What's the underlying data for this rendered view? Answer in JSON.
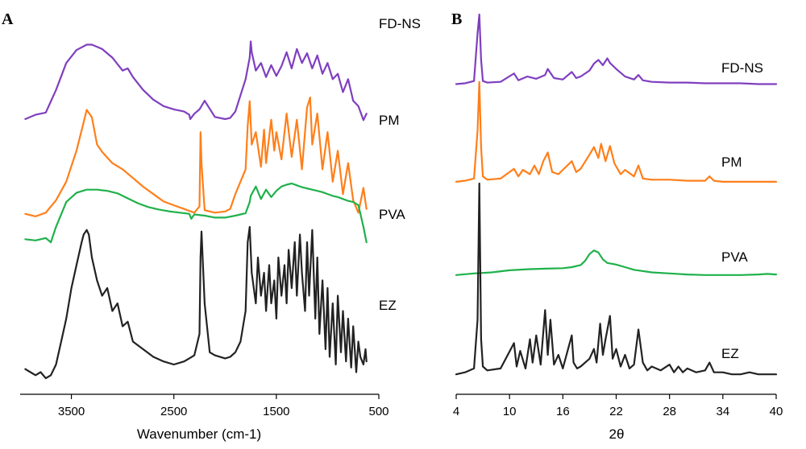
{
  "chart_data": [
    {
      "panel_label": "A",
      "type": "line",
      "xlabel": "Wavenumber (cm-1)",
      "ylabel": "",
      "xlim": [
        4000,
        500
      ],
      "x_axis_reversed": true,
      "xticks": [
        3500,
        2500,
        1500,
        500
      ],
      "x_tick_labels": [
        "3500",
        "2500",
        "1500",
        "500"
      ],
      "series": [
        {
          "name": "FD-NS",
          "color": "#7f3fbf",
          "x": [
            3950,
            3850,
            3750,
            3650,
            3550,
            3450,
            3350,
            3300,
            3200,
            3100,
            3000,
            2950,
            2900,
            2800,
            2700,
            2600,
            2500,
            2400,
            2350,
            2340,
            2300,
            2250,
            2200,
            2100,
            2000,
            1950,
            1900,
            1800,
            1760,
            1750,
            1740,
            1700,
            1650,
            1600,
            1550,
            1500,
            1450,
            1400,
            1350,
            1300,
            1250,
            1200,
            1150,
            1100,
            1050,
            1000,
            950,
            900,
            850,
            800,
            750,
            700,
            650,
            620
          ],
          "y": [
            0.97,
            0.93,
            0.91,
            0.7,
            0.45,
            0.33,
            0.28,
            0.28,
            0.32,
            0.4,
            0.52,
            0.5,
            0.58,
            0.7,
            0.79,
            0.85,
            0.88,
            0.9,
            0.93,
            0.97,
            0.92,
            0.88,
            0.8,
            0.95,
            0.97,
            0.96,
            0.9,
            0.6,
            0.4,
            0.25,
            0.35,
            0.52,
            0.45,
            0.58,
            0.47,
            0.57,
            0.48,
            0.35,
            0.5,
            0.32,
            0.45,
            0.36,
            0.5,
            0.38,
            0.55,
            0.45,
            0.6,
            0.55,
            0.72,
            0.6,
            0.8,
            0.85,
            0.98,
            0.92
          ]
        },
        {
          "name": "PM",
          "color": "#ff7f1a",
          "x": [
            3950,
            3850,
            3750,
            3650,
            3550,
            3450,
            3380,
            3350,
            3300,
            3250,
            3200,
            3100,
            3000,
            2900,
            2800,
            2700,
            2600,
            2500,
            2400,
            2300,
            2250,
            2240,
            2230,
            2200,
            2100,
            2000,
            1950,
            1900,
            1800,
            1780,
            1760,
            1740,
            1700,
            1650,
            1620,
            1600,
            1550,
            1520,
            1500,
            1450,
            1400,
            1350,
            1300,
            1250,
            1200,
            1170,
            1150,
            1100,
            1050,
            1000,
            950,
            900,
            850,
            800,
            750,
            700,
            650,
            620
          ],
          "y": [
            0.96,
            0.98,
            0.95,
            0.85,
            0.7,
            0.45,
            0.22,
            0.12,
            0.18,
            0.4,
            0.46,
            0.55,
            0.6,
            0.67,
            0.74,
            0.8,
            0.86,
            0.89,
            0.92,
            0.95,
            0.9,
            0.3,
            0.55,
            0.93,
            0.95,
            0.94,
            0.92,
            0.8,
            0.6,
            0.25,
            0.05,
            0.4,
            0.3,
            0.58,
            0.28,
            0.55,
            0.2,
            0.45,
            0.3,
            0.52,
            0.15,
            0.5,
            0.2,
            0.6,
            0.1,
            0.02,
            0.4,
            0.15,
            0.6,
            0.3,
            0.7,
            0.45,
            0.8,
            0.55,
            0.85,
            0.95,
            0.75,
            0.92
          ]
        },
        {
          "name": "PVA",
          "color": "#1fb14b",
          "x": [
            3950,
            3850,
            3750,
            3700,
            3650,
            3550,
            3450,
            3350,
            3250,
            3150,
            3050,
            2950,
            2850,
            2750,
            2650,
            2550,
            2450,
            2350,
            2330,
            2300,
            2200,
            2100,
            2000,
            1900,
            1800,
            1760,
            1750,
            1700,
            1650,
            1600,
            1550,
            1500,
            1450,
            1400,
            1350,
            1300,
            1250,
            1200,
            1150,
            1100,
            1050,
            1000,
            950,
            900,
            850,
            800,
            750,
            700,
            650,
            620
          ],
          "y": [
            0.9,
            0.92,
            0.88,
            0.95,
            0.7,
            0.3,
            0.15,
            0.1,
            0.1,
            0.12,
            0.16,
            0.24,
            0.32,
            0.38,
            0.42,
            0.45,
            0.47,
            0.49,
            0.57,
            0.5,
            0.52,
            0.55,
            0.55,
            0.52,
            0.48,
            0.3,
            0.2,
            0.05,
            0.25,
            0.1,
            0.22,
            0.12,
            0.05,
            0.02,
            0.0,
            0.03,
            0.06,
            0.08,
            0.1,
            0.12,
            0.14,
            0.17,
            0.2,
            0.22,
            0.25,
            0.28,
            0.3,
            0.35,
            0.7,
            0.95
          ]
        },
        {
          "name": "EZ",
          "color": "#222222",
          "x": [
            3950,
            3900,
            3850,
            3800,
            3750,
            3700,
            3650,
            3600,
            3550,
            3500,
            3450,
            3400,
            3380,
            3350,
            3330,
            3300,
            3250,
            3200,
            3150,
            3100,
            3050,
            3000,
            2950,
            2900,
            2800,
            2700,
            2600,
            2500,
            2400,
            2350,
            2300,
            2250,
            2240,
            2230,
            2200,
            2150,
            2100,
            2000,
            1950,
            1900,
            1850,
            1800,
            1780,
            1760,
            1740,
            1700,
            1680,
            1650,
            1620,
            1600,
            1570,
            1550,
            1520,
            1500,
            1480,
            1450,
            1420,
            1400,
            1380,
            1350,
            1320,
            1300,
            1270,
            1250,
            1220,
            1200,
            1180,
            1150,
            1120,
            1100,
            1080,
            1050,
            1020,
            1000,
            980,
            950,
            920,
            900,
            870,
            850,
            820,
            800,
            770,
            750,
            720,
            700,
            680,
            650,
            630,
            620
          ],
          "y": [
            0.93,
            0.95,
            0.97,
            0.95,
            0.99,
            0.97,
            0.9,
            0.75,
            0.6,
            0.4,
            0.25,
            0.1,
            0.05,
            0.02,
            0.05,
            0.2,
            0.35,
            0.45,
            0.4,
            0.55,
            0.5,
            0.65,
            0.62,
            0.75,
            0.8,
            0.85,
            0.88,
            0.9,
            0.88,
            0.86,
            0.84,
            0.7,
            0.2,
            0.03,
            0.5,
            0.82,
            0.84,
            0.86,
            0.85,
            0.82,
            0.75,
            0.55,
            0.1,
            0.0,
            0.3,
            0.5,
            0.2,
            0.45,
            0.3,
            0.55,
            0.25,
            0.5,
            0.35,
            0.6,
            0.2,
            0.45,
            0.25,
            0.5,
            0.15,
            0.4,
            0.1,
            0.45,
            0.05,
            0.3,
            0.55,
            0.1,
            0.45,
            0.02,
            0.6,
            0.2,
            0.7,
            0.35,
            0.8,
            0.4,
            0.85,
            0.5,
            0.9,
            0.45,
            0.82,
            0.55,
            0.88,
            0.6,
            0.92,
            0.65,
            0.95,
            0.75,
            0.85,
            0.9,
            0.8,
            0.88
          ]
        }
      ]
    },
    {
      "panel_label": "B",
      "type": "line",
      "xlabel": "2θ",
      "ylabel": "",
      "xlim": [
        4,
        40
      ],
      "xticks": [
        4,
        10,
        16,
        22,
        28,
        34,
        40
      ],
      "x_tick_labels": [
        "4",
        "10",
        "16",
        "22",
        "28",
        "34",
        "40"
      ],
      "series": [
        {
          "name": "FD-NS",
          "color": "#7f3fbf",
          "x": [
            4,
            5,
            6,
            6.4,
            6.6,
            6.8,
            7,
            7.5,
            9,
            10.5,
            11,
            12,
            13,
            14,
            14.3,
            15,
            16,
            17,
            17.5,
            18,
            19,
            19.5,
            20,
            20.5,
            21,
            21.3,
            22,
            23,
            24,
            24.5,
            25,
            26,
            28,
            30,
            32,
            34,
            36,
            38,
            40
          ],
          "y": [
            0.08,
            0.09,
            0.12,
            0.75,
            1.0,
            0.4,
            0.12,
            0.1,
            0.11,
            0.22,
            0.13,
            0.18,
            0.15,
            0.2,
            0.28,
            0.16,
            0.14,
            0.24,
            0.16,
            0.18,
            0.26,
            0.35,
            0.4,
            0.33,
            0.42,
            0.36,
            0.28,
            0.18,
            0.14,
            0.2,
            0.13,
            0.11,
            0.1,
            0.1,
            0.09,
            0.09,
            0.09,
            0.08,
            0.08
          ]
        },
        {
          "name": "PM",
          "color": "#ff7f1a",
          "x": [
            4,
            5,
            6,
            6.4,
            6.6,
            6.8,
            7,
            7.5,
            9,
            10.5,
            11,
            11.5,
            12.3,
            12.8,
            13.3,
            13.8,
            14.3,
            14.8,
            15.5,
            16,
            17,
            17.5,
            18,
            19,
            19.5,
            20,
            20.3,
            20.8,
            21.3,
            21.8,
            22.5,
            23,
            24,
            24.5,
            25,
            26,
            28,
            30,
            32,
            32.5,
            33,
            34,
            36,
            38,
            40
          ],
          "y": [
            0.03,
            0.04,
            0.06,
            0.5,
            0.95,
            0.35,
            0.08,
            0.05,
            0.06,
            0.15,
            0.08,
            0.14,
            0.1,
            0.18,
            0.1,
            0.22,
            0.3,
            0.12,
            0.1,
            0.14,
            0.22,
            0.12,
            0.15,
            0.28,
            0.35,
            0.25,
            0.38,
            0.22,
            0.36,
            0.2,
            0.1,
            0.14,
            0.08,
            0.18,
            0.06,
            0.05,
            0.05,
            0.04,
            0.04,
            0.08,
            0.04,
            0.03,
            0.03,
            0.03,
            0.03
          ]
        },
        {
          "name": "PVA",
          "color": "#1fb14b",
          "x": [
            4,
            6,
            8,
            10,
            12,
            14,
            16,
            17,
            18,
            18.5,
            19,
            19.5,
            20,
            20.5,
            21,
            22,
            23,
            24,
            26,
            28,
            30,
            32,
            34,
            36,
            38,
            39,
            40
          ],
          "y": [
            0.05,
            0.08,
            0.1,
            0.14,
            0.16,
            0.17,
            0.18,
            0.2,
            0.24,
            0.32,
            0.45,
            0.52,
            0.48,
            0.35,
            0.28,
            0.25,
            0.2,
            0.15,
            0.1,
            0.08,
            0.06,
            0.05,
            0.05,
            0.05,
            0.06,
            0.07,
            0.06
          ]
        },
        {
          "name": "EZ",
          "color": "#222222",
          "x": [
            4,
            5,
            6,
            6.4,
            6.6,
            6.8,
            7,
            7.5,
            9,
            10.5,
            10.8,
            11.2,
            11.8,
            12.3,
            12.6,
            13,
            13.5,
            14,
            14.3,
            14.6,
            15,
            15.5,
            16,
            17,
            17.2,
            17.6,
            18,
            19,
            19.5,
            19.8,
            20.2,
            20.5,
            20.8,
            21.3,
            21.6,
            22,
            22.5,
            23,
            23.5,
            24,
            24.5,
            25,
            25.5,
            26,
            27,
            28,
            28.5,
            29,
            29.5,
            30,
            31,
            32,
            32.5,
            33,
            34,
            35,
            36,
            37,
            38,
            39,
            40
          ],
          "y": [
            0.02,
            0.03,
            0.05,
            0.3,
            1.0,
            0.2,
            0.06,
            0.04,
            0.05,
            0.18,
            0.06,
            0.14,
            0.05,
            0.2,
            0.08,
            0.22,
            0.07,
            0.35,
            0.12,
            0.3,
            0.07,
            0.12,
            0.05,
            0.22,
            0.08,
            0.05,
            0.06,
            0.1,
            0.15,
            0.08,
            0.28,
            0.12,
            0.2,
            0.32,
            0.1,
            0.15,
            0.06,
            0.12,
            0.05,
            0.07,
            0.25,
            0.08,
            0.04,
            0.06,
            0.04,
            0.07,
            0.03,
            0.06,
            0.03,
            0.05,
            0.03,
            0.04,
            0.08,
            0.03,
            0.03,
            0.02,
            0.02,
            0.03,
            0.02,
            0.02,
            0.02
          ]
        }
      ]
    }
  ]
}
